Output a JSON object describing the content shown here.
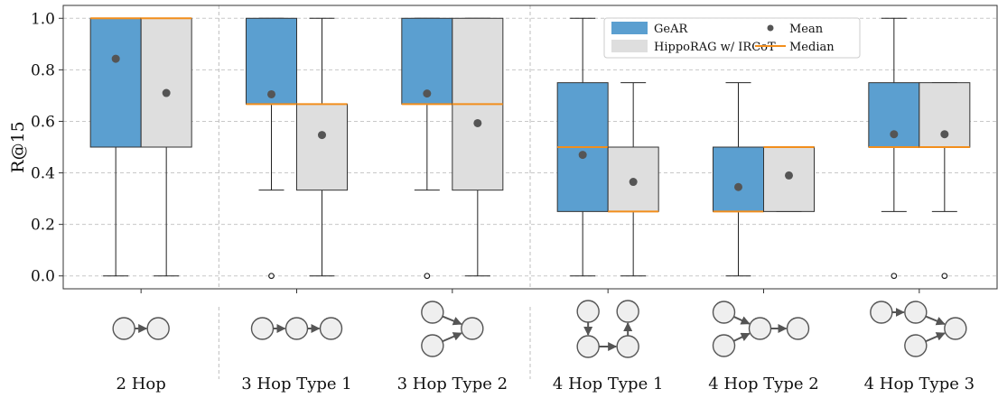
{
  "chart_data": {
    "type": "box",
    "ylabel": "R@15",
    "ylim": [
      -0.05,
      1.05
    ],
    "yticks": [
      "0.0",
      "0.2",
      "0.4",
      "0.6",
      "0.8",
      "1.0"
    ],
    "ytick_values": [
      0.0,
      0.2,
      0.4,
      0.6,
      0.8,
      1.0
    ],
    "grid": "dashed",
    "legend_position": "top-right",
    "legend": {
      "series": [
        "GeAR",
        "HippoRAG w/ IRCoT"
      ],
      "markers": [
        "Mean",
        "Median"
      ]
    },
    "colors": {
      "GeAR": "#5b9fd0",
      "HippoRAG w/ IRCoT": "#dedede",
      "median": "#f28e1c",
      "mean": "#555555"
    },
    "categories": [
      "2 Hop",
      "3 Hop Type 1",
      "3 Hop Type 2",
      "4 Hop Type 1",
      "4 Hop Type 2",
      "4 Hop Type 3"
    ],
    "group_separators_after": [
      0,
      2
    ],
    "series": [
      {
        "name": "GeAR",
        "boxes": [
          {
            "whisker_low": 0.0,
            "q1": 0.5,
            "median": 1.0,
            "q3": 1.0,
            "whisker_high": 1.0,
            "mean": 0.843,
            "outliers": []
          },
          {
            "whisker_low": 0.333,
            "q1": 0.667,
            "median": 0.667,
            "q3": 1.0,
            "whisker_high": 1.0,
            "mean": 0.705,
            "outliers": [
              0.0
            ]
          },
          {
            "whisker_low": 0.333,
            "q1": 0.667,
            "median": 0.667,
            "q3": 1.0,
            "whisker_high": 1.0,
            "mean": 0.708,
            "outliers": [
              0.0
            ]
          },
          {
            "whisker_low": 0.0,
            "q1": 0.25,
            "median": 0.5,
            "q3": 0.75,
            "whisker_high": 1.0,
            "mean": 0.47,
            "outliers": []
          },
          {
            "whisker_low": 0.0,
            "q1": 0.25,
            "median": 0.25,
            "q3": 0.5,
            "whisker_high": 0.75,
            "mean": 0.345,
            "outliers": []
          },
          {
            "whisker_low": 0.25,
            "q1": 0.5,
            "median": 0.5,
            "q3": 0.75,
            "whisker_high": 1.0,
            "mean": 0.55,
            "outliers": [
              0.0
            ]
          }
        ]
      },
      {
        "name": "HippoRAG w/ IRCoT",
        "boxes": [
          {
            "whisker_low": 0.0,
            "q1": 0.5,
            "median": 1.0,
            "q3": 1.0,
            "whisker_high": 1.0,
            "mean": 0.71,
            "outliers": []
          },
          {
            "whisker_low": 0.0,
            "q1": 0.333,
            "median": 0.667,
            "q3": 0.667,
            "whisker_high": 1.0,
            "mean": 0.547,
            "outliers": []
          },
          {
            "whisker_low": 0.0,
            "q1": 0.333,
            "median": 0.667,
            "q3": 1.0,
            "whisker_high": 1.0,
            "mean": 0.593,
            "outliers": []
          },
          {
            "whisker_low": 0.0,
            "q1": 0.25,
            "median": 0.25,
            "q3": 0.5,
            "whisker_high": 0.75,
            "mean": 0.365,
            "outliers": []
          },
          {
            "whisker_low": 0.25,
            "q1": 0.25,
            "median": 0.5,
            "q3": 0.5,
            "whisker_high": 0.5,
            "mean": 0.39,
            "outliers": []
          },
          {
            "whisker_low": 0.25,
            "q1": 0.5,
            "median": 0.5,
            "q3": 0.75,
            "whisker_high": 0.75,
            "mean": 0.55,
            "outliers": [
              0.0
            ]
          }
        ]
      }
    ],
    "hop_diagrams": [
      {
        "category": "2 Hop",
        "shape": "chain-2"
      },
      {
        "category": "3 Hop Type 1",
        "shape": "chain-3"
      },
      {
        "category": "3 Hop Type 2",
        "shape": "two-into-one"
      },
      {
        "category": "4 Hop Type 1",
        "shape": "down-right-up"
      },
      {
        "category": "4 Hop Type 2",
        "shape": "two-into-chain"
      },
      {
        "category": "4 Hop Type 3",
        "shape": "chain-plus-branch"
      }
    ]
  }
}
